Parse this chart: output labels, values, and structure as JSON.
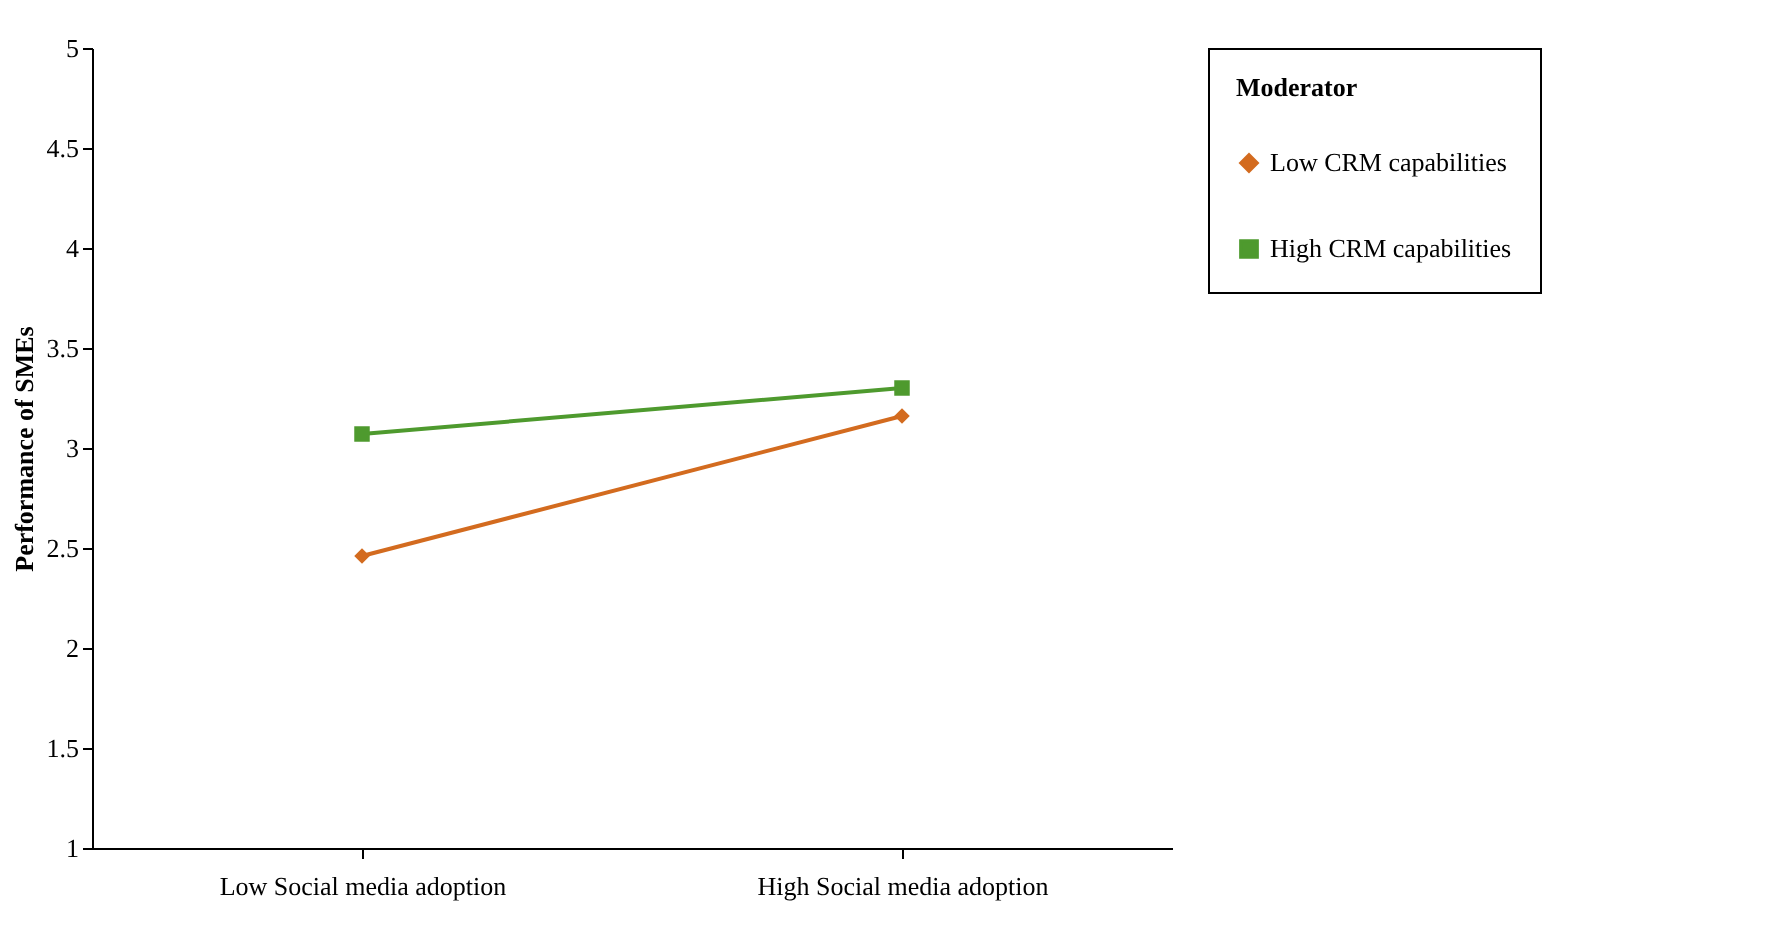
{
  "chart_data": {
    "type": "line",
    "ylabel": "Performance of SMEs",
    "legend_title": "Moderator",
    "categories": [
      "Low Social media adoption",
      "High Social media adoption"
    ],
    "series": [
      {
        "name": "Low CRM capabilities",
        "color": "#d36b1f",
        "values": [
          2.46,
          3.16
        ],
        "marker": "diamond"
      },
      {
        "name": "High CRM capabilities",
        "color": "#4e9a2e",
        "values": [
          3.07,
          3.3
        ],
        "marker": "square"
      }
    ],
    "ylim": [
      1,
      5
    ],
    "yticks": [
      1,
      1.5,
      2,
      2.5,
      3,
      3.5,
      4,
      4.5,
      5
    ],
    "grid": false,
    "legend": "right",
    "line_style": "solid"
  }
}
